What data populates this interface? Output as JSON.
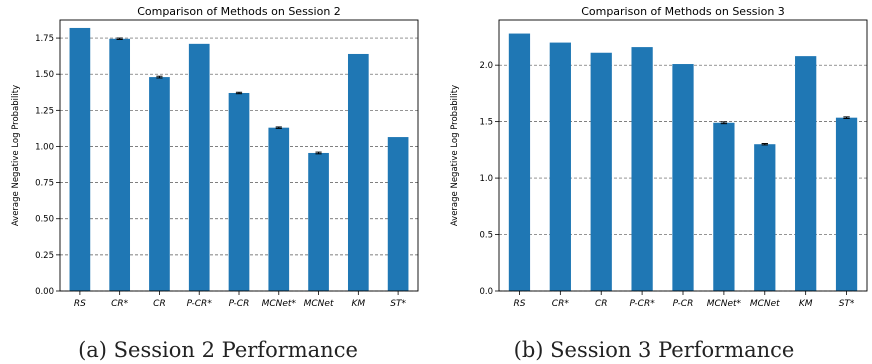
{
  "captions": {
    "a": "(a) Session 2 Performance",
    "b": "(b) Session 3 Performance"
  },
  "colors": {
    "bar": "#1f77b4",
    "grid": "#555555",
    "axis": "#000000"
  },
  "chart_data": [
    {
      "type": "bar",
      "title": "Comparison of Methods on Session 2",
      "xlabel": "",
      "ylabel": "Average Negative Log Probability",
      "categories": [
        "RS",
        "CR*",
        "CR",
        "P-CR*",
        "P-CR",
        "MCNet*",
        "MCNet",
        "KM",
        "ST*"
      ],
      "values": [
        1.82,
        1.745,
        1.48,
        1.71,
        1.37,
        1.13,
        0.955,
        1.64,
        1.065
      ],
      "errors": [
        0.0,
        0.005,
        0.006,
        0.0,
        0.005,
        0.005,
        0.006,
        0.0,
        0.0
      ],
      "ylim": [
        0,
        1.875
      ],
      "yticks": [
        "0.00",
        "0.25",
        "0.50",
        "0.75",
        "1.00",
        "1.25",
        "1.50",
        "1.75"
      ],
      "ytick_values": [
        0,
        0.25,
        0.5,
        0.75,
        1.0,
        1.25,
        1.5,
        1.75
      ],
      "grid": "y-dashed",
      "legend": "none"
    },
    {
      "type": "bar",
      "title": "Comparison of Methods on Session 3",
      "xlabel": "",
      "ylabel": "Average Negative Log Probability",
      "categories": [
        "RS",
        "CR*",
        "CR",
        "P-CR*",
        "P-CR",
        "MCNet*",
        "MCNet",
        "KM",
        "ST*"
      ],
      "values": [
        2.28,
        2.2,
        2.11,
        2.16,
        2.01,
        1.49,
        1.3,
        2.08,
        1.535
      ],
      "errors": [
        0.0,
        0.0,
        0.0,
        0.0,
        0.0,
        0.008,
        0.006,
        0.0,
        0.007
      ],
      "ylim": [
        0,
        2.4
      ],
      "yticks": [
        "0.0",
        "0.5",
        "1.0",
        "1.5",
        "2.0"
      ],
      "ytick_values": [
        0,
        0.5,
        1.0,
        1.5,
        2.0
      ],
      "grid": "y-dashed",
      "legend": "none"
    }
  ]
}
